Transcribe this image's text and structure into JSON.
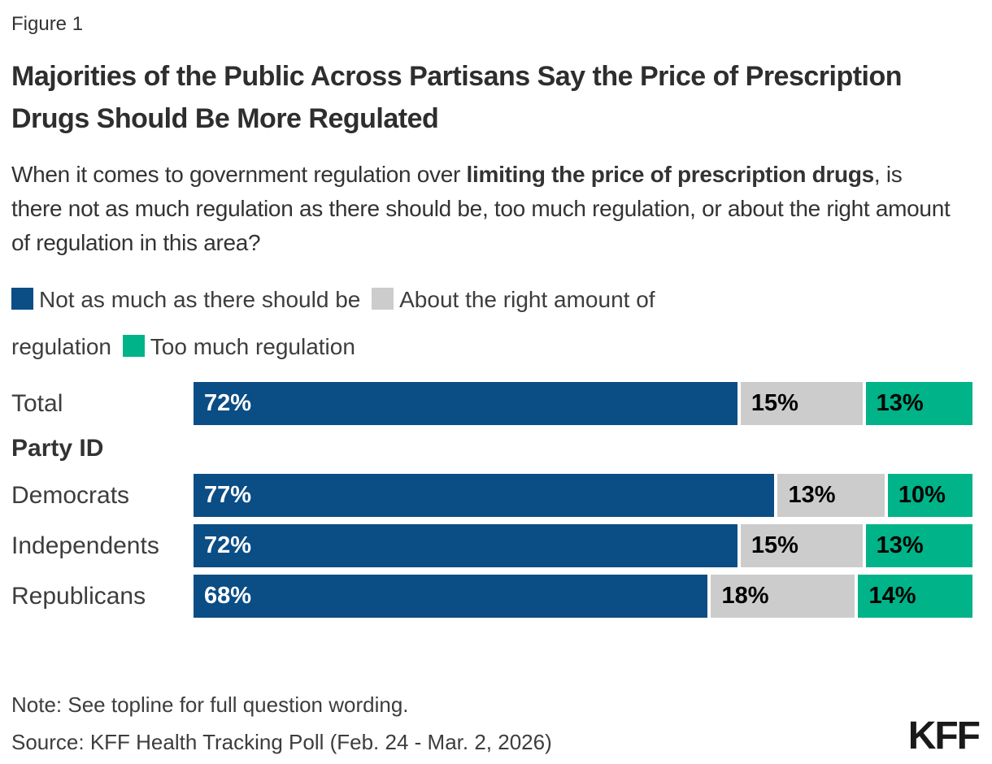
{
  "figure_label": "Figure 1",
  "title": "Majorities of the Public Across Partisans Say the Price of Prescription Drugs Should Be More Regulated",
  "question": {
    "prefix": "When it comes to government regulation over ",
    "bold": "limiting the price of prescription drugs",
    "suffix": ", is there not as much regulation as there should be, too much regulation, or about the right amount of regulation in this area?"
  },
  "colors": {
    "not_as_much": "#0B4D85",
    "about_right": "#CCCCCC",
    "too_much": "#00B388"
  },
  "legend": [
    {
      "label": "Not as much as there should be",
      "color": "#0B4D85"
    },
    {
      "label": "About the right amount of regulation",
      "color": "#CCCCCC"
    },
    {
      "label": "Too much regulation",
      "color": "#00B388"
    }
  ],
  "group_heading": {
    "label": "Party ID",
    "before_category": "Democrats"
  },
  "chart_data": {
    "type": "bar",
    "orientation": "horizontal",
    "stacked": true,
    "categories": [
      "Total",
      "Democrats",
      "Independents",
      "Republicans"
    ],
    "value_suffix": "%",
    "xlim": [
      0,
      100
    ],
    "legend_position": "top",
    "grid": false,
    "series": [
      {
        "name": "Not as much as there should be",
        "color": "#0B4D85",
        "label_color": "#ffffff",
        "values": [
          72,
          77,
          72,
          68
        ]
      },
      {
        "name": "About the right amount of regulation",
        "color": "#CCCCCC",
        "label_color": "#000000",
        "values": [
          15,
          13,
          15,
          18
        ]
      },
      {
        "name": "Too much regulation",
        "color": "#00B388",
        "label_color": "#000000",
        "values": [
          13,
          10,
          13,
          14
        ]
      }
    ]
  },
  "note": "Note: See topline for full question wording.",
  "source": "Source: KFF Health Tracking Poll (Feb. 24 - Mar. 2, 2026)",
  "logo": "KFF"
}
